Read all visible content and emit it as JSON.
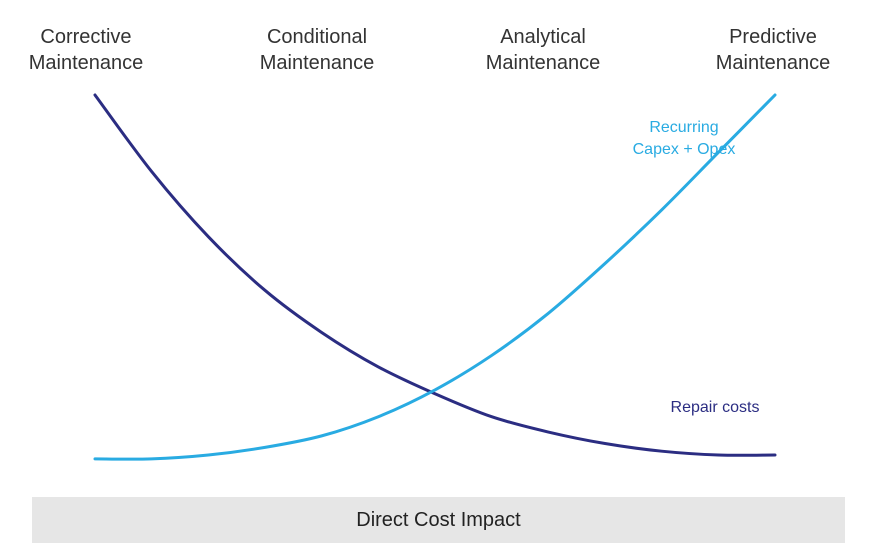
{
  "chart_data": {
    "type": "line",
    "categories": [
      "Corrective\nMaintenance",
      "Conditional\nMaintenance",
      "Analytical\nMaintenance",
      "Predictive\nMaintenance"
    ],
    "xlabel": "Direct Cost Impact",
    "ylabel": "",
    "grid": false,
    "series": [
      {
        "name": "Repair costs",
        "color": "#2b2d82",
        "x": [
          0,
          0.25,
          0.5,
          0.75,
          1.0,
          1.25,
          1.5,
          1.75,
          2.0,
          2.25,
          2.5,
          2.75,
          3.0
        ],
        "values": [
          100,
          80,
          63,
          49,
          38,
          29,
          22,
          16,
          12,
          9,
          7,
          6,
          6
        ]
      },
      {
        "name": "Recurring\nCapex + Opex",
        "color": "#29abe2",
        "x": [
          0,
          0.25,
          0.5,
          0.75,
          1.0,
          1.25,
          1.5,
          1.75,
          2.0,
          2.25,
          2.5,
          2.75,
          3.0
        ],
        "values": [
          5,
          5,
          6,
          8,
          11,
          16,
          23,
          32,
          43,
          56,
          70,
          85,
          100
        ]
      }
    ]
  }
}
